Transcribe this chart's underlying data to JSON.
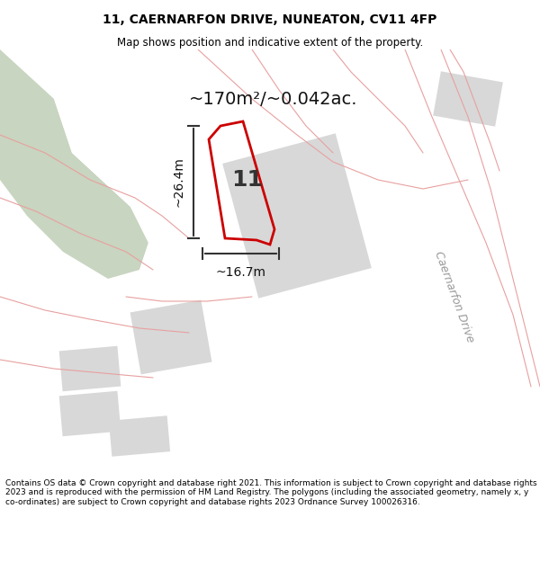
{
  "title_line1": "11, CAERNARFON DRIVE, NUNEATON, CV11 4FP",
  "title_line2": "Map shows position and indicative extent of the property.",
  "area_text": "~170m²/~0.042ac.",
  "label_number": "11",
  "dim_height": "~26.4m",
  "dim_width": "~16.7m",
  "street_label": "Caernarfon Drive",
  "footer_text": "Contains OS data © Crown copyright and database right 2021. This information is subject to Crown copyright and database rights 2023 and is reproduced with the permission of HM Land Registry. The polygons (including the associated geometry, namely x, y co-ordinates) are subject to Crown copyright and database rights 2023 Ordnance Survey 100026316.",
  "bg_color": "#f5f5f0",
  "map_bg": "#f0f0ea",
  "green_patch_color": "#c8d5c0",
  "gray_block_color": "#d8d8d8",
  "road_color": "#ffffff",
  "road_outline_color": "#e8a0a0",
  "highlight_polygon_color": "#cc0000",
  "title_bg": "#ffffff",
  "footer_bg": "#ffffff"
}
